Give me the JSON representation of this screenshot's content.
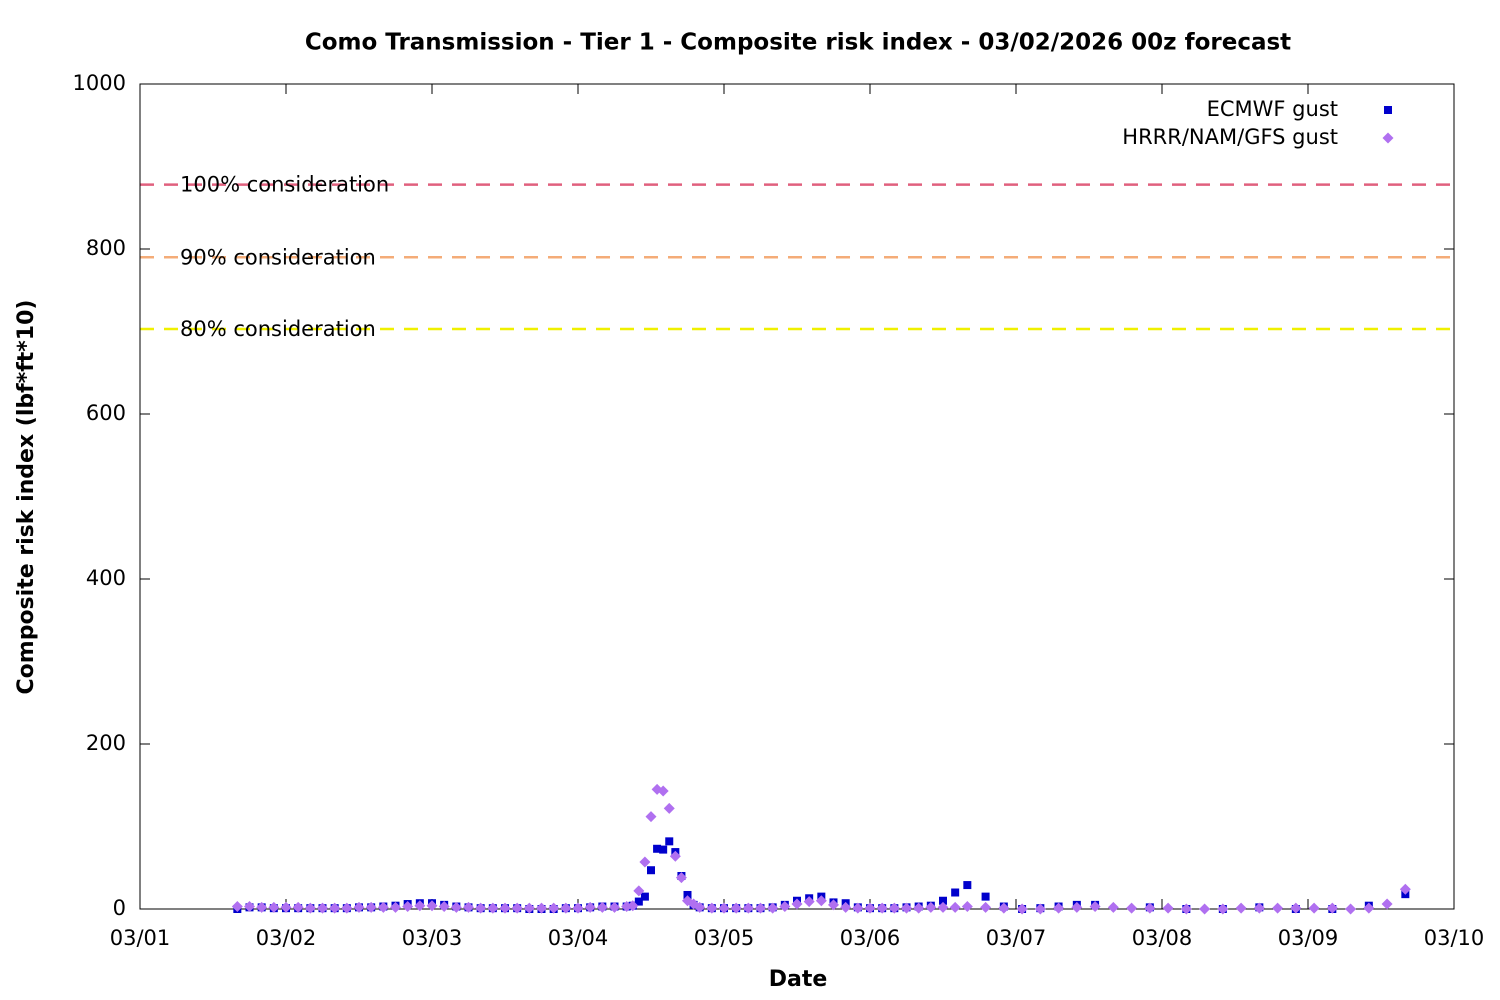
{
  "chart_data": {
    "type": "scatter",
    "title": "Como Transmission - Tier 1 - Composite risk index - 03/02/2026 00z forecast",
    "x_label": "Date",
    "y_label": "Composite risk index (lbf*ft*10)",
    "xlim": [
      0,
      216
    ],
    "xticks": [
      {
        "value": 0,
        "label": "03/01"
      },
      {
        "value": 24,
        "label": "03/02"
      },
      {
        "value": 48,
        "label": "03/03"
      },
      {
        "value": 72,
        "label": "03/04"
      },
      {
        "value": 96,
        "label": "03/05"
      },
      {
        "value": 120,
        "label": "03/06"
      },
      {
        "value": 144,
        "label": "03/07"
      },
      {
        "value": 168,
        "label": "03/08"
      },
      {
        "value": 192,
        "label": "03/09"
      },
      {
        "value": 216,
        "label": "03/10"
      }
    ],
    "ylim": [
      0,
      1000
    ],
    "yticks": [
      0,
      200,
      400,
      600,
      800,
      1000
    ],
    "legend": "top-right",
    "reference_lines": [
      {
        "label": "100% consideration",
        "value": 878,
        "color": "#e0607e"
      },
      {
        "label": "90% consideration",
        "value": 790,
        "color": "#f4ac78"
      },
      {
        "label": "80% consideration",
        "value": 703,
        "color": "#f0f000"
      }
    ],
    "x": [
      16,
      18,
      20,
      22,
      24,
      26,
      28,
      30,
      32,
      34,
      36,
      38,
      40,
      42,
      44,
      46,
      48,
      50,
      52,
      54,
      56,
      58,
      60,
      62,
      64,
      66,
      68,
      70,
      72,
      74,
      76,
      78,
      80,
      81,
      82,
      83,
      84,
      85,
      86,
      87,
      88,
      89,
      90,
      91,
      92,
      94,
      96,
      98,
      100,
      102,
      104,
      106,
      108,
      110,
      112,
      114,
      116,
      118,
      120,
      122,
      124,
      126,
      128,
      130,
      132,
      134,
      136,
      139,
      142,
      145,
      148,
      151,
      154,
      157,
      160,
      163,
      166,
      169,
      172,
      175,
      178,
      181,
      184,
      187,
      190,
      193,
      196,
      199,
      202,
      205,
      208
    ],
    "series": [
      {
        "name": "ECMWF gust",
        "color": "#0000cc",
        "marker": "square",
        "values": [
          0,
          2,
          2,
          1,
          1,
          1,
          1,
          1,
          1,
          1,
          2,
          2,
          3,
          4,
          6,
          7,
          7,
          5,
          3,
          2,
          1,
          1,
          1,
          1,
          0,
          0,
          0,
          1,
          1,
          2,
          3,
          3,
          3,
          4,
          9,
          15,
          47,
          73,
          72,
          82,
          69,
          40,
          17,
          5,
          2,
          1,
          1,
          1,
          1,
          1,
          2,
          5,
          10,
          13,
          15,
          8,
          7,
          2,
          1,
          1,
          1,
          2,
          3,
          4,
          10,
          20,
          29,
          15,
          3,
          0,
          1,
          3,
          5,
          5,
          null,
          null,
          2,
          null,
          0,
          null,
          0,
          null,
          2,
          null,
          0,
          null,
          0,
          null,
          4,
          null,
          18
        ]
      },
      {
        "name": "HRRR/NAM/GFS gust",
        "color": "#b070f0",
        "marker": "diamond",
        "values": [
          3,
          3,
          2,
          2,
          2,
          2,
          1,
          1,
          1,
          1,
          2,
          2,
          2,
          2,
          3,
          4,
          4,
          3,
          2,
          2,
          1,
          1,
          1,
          1,
          1,
          1,
          1,
          1,
          1,
          2,
          2,
          2,
          3,
          4,
          22,
          57,
          112,
          145,
          143,
          122,
          64,
          38,
          10,
          6,
          2,
          1,
          1,
          1,
          1,
          1,
          1,
          3,
          6,
          9,
          10,
          5,
          2,
          1,
          1,
          1,
          1,
          1,
          1,
          2,
          2,
          2,
          3,
          2,
          1,
          0,
          0,
          1,
          2,
          3,
          2,
          1,
          1,
          1,
          0,
          0,
          0,
          1,
          1,
          1,
          1,
          1,
          1,
          0,
          1,
          6,
          24
        ]
      }
    ]
  }
}
